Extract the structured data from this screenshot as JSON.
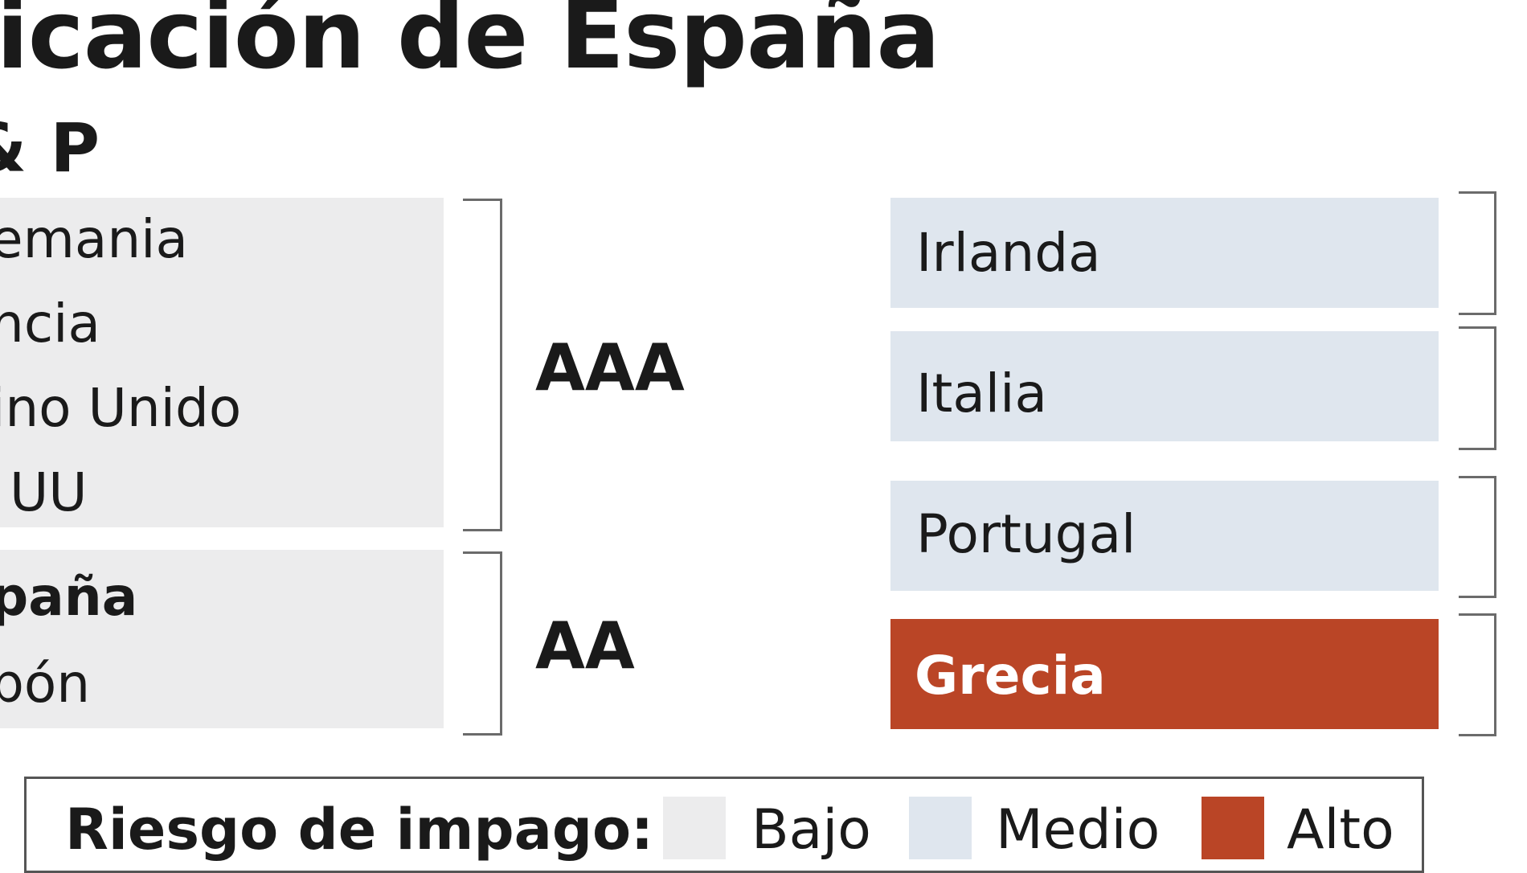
{
  "title": "ficación de España",
  "subtitle": "& P",
  "groups": [
    {
      "rating": "AAA",
      "countries": [
        "emania",
        "ncia",
        "ino Unido",
        "UU"
      ]
    },
    {
      "rating": "AA",
      "countries": [
        "paña",
        "pón"
      ]
    }
  ],
  "right_countries": [
    {
      "name": "Irlanda",
      "risk": "Medio"
    },
    {
      "name": "Italia",
      "risk": "Medio"
    },
    {
      "name": "Portugal",
      "risk": "Medio"
    },
    {
      "name": "Grecia",
      "risk": "Alto"
    }
  ],
  "legend": {
    "title": "Riesgo de impago:",
    "items": [
      {
        "label": "Bajo",
        "color": "#ececed"
      },
      {
        "label": "Medio",
        "color": "#dfe6ee"
      },
      {
        "label": "Alto",
        "color": "#ba4526"
      }
    ]
  },
  "colors": {
    "low": "#ececed",
    "medium": "#dfe6ee",
    "high": "#ba4526"
  }
}
